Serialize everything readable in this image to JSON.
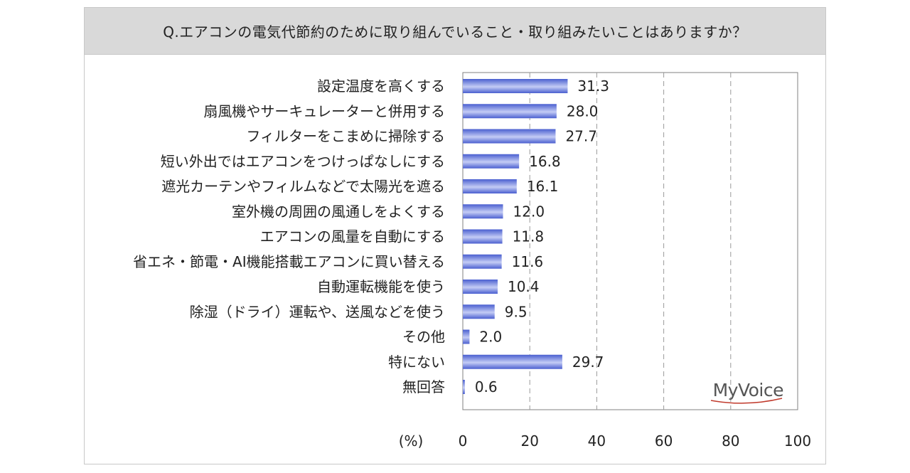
{
  "chart_data": {
    "type": "bar",
    "orientation": "horizontal",
    "title": "Q.エアコンの電気代節約のために取り組んでいること・取り組みたいことはありますか？",
    "categories": [
      "設定温度を高くする",
      "扇風機やサーキュレーターと併用する",
      "フィルターをこまめに掃除する",
      "短い外出ではエアコンをつけっぱなしにする",
      "遮光カーテンやフィルムなどで太陽光を遮る",
      "室外機の周囲の風通しをよくする",
      "エアコンの風量を自動にする",
      "省エネ・節電・AI機能搭載エアコンに買い替える",
      "自動運転機能を使う",
      "除湿（ドライ）運転や、送風などを使う",
      "その他",
      "特にない",
      "無回答"
    ],
    "values": [
      31.3,
      28.0,
      27.7,
      16.8,
      16.1,
      12.0,
      11.8,
      11.6,
      10.4,
      9.5,
      2.0,
      29.7,
      0.6
    ],
    "value_labels": [
      "31.3",
      "28.0",
      "27.7",
      "16.8",
      "16.1",
      "12.0",
      "11.8",
      "11.6",
      "10.4",
      "9.5",
      "2.0",
      "29.7",
      "0.6"
    ],
    "xlim": [
      0,
      100
    ],
    "xticks": [
      "0",
      "20",
      "40",
      "60",
      "80",
      "100"
    ],
    "xtick_values": [
      0,
      20,
      40,
      60,
      80,
      100
    ],
    "xlabel": "(%)",
    "grid": "vertical-dashed",
    "bar_color": "#4a5fd0",
    "bar_color_light": "#c4ccf5",
    "logo_text": "MyVoice"
  }
}
